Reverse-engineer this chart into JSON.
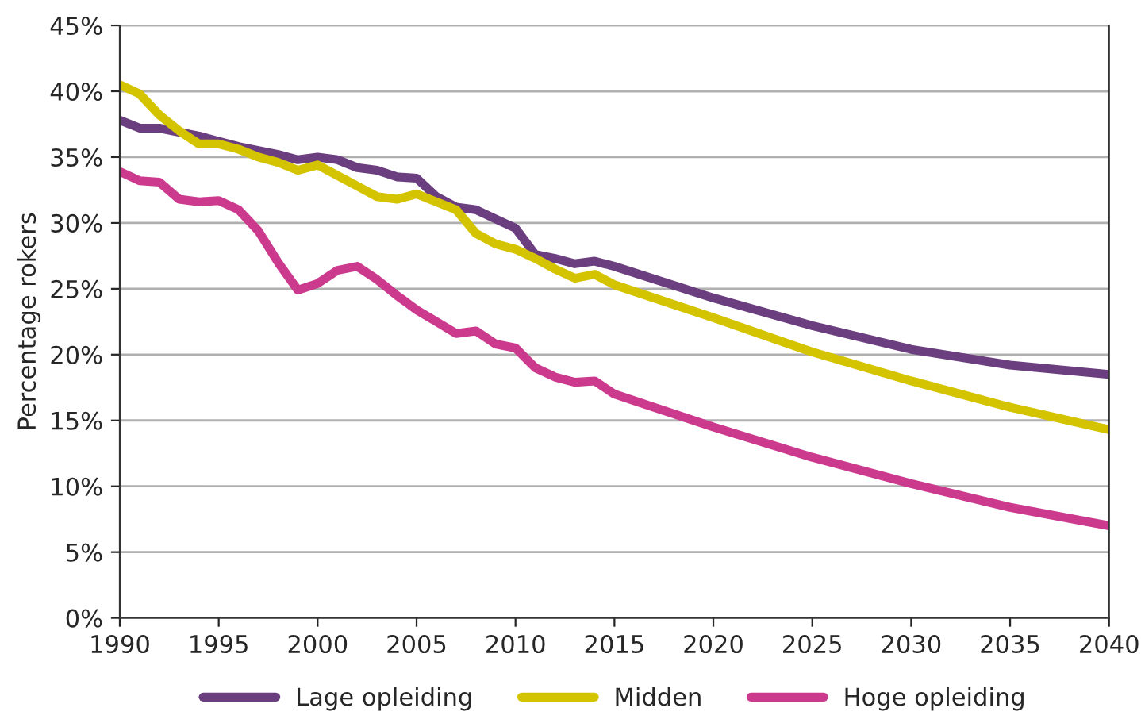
{
  "chart_data": {
    "type": "line",
    "ylabel": "Percentage rokers",
    "x": [
      1990,
      1991,
      1992,
      1993,
      1994,
      1995,
      1996,
      1997,
      1998,
      1999,
      2000,
      2001,
      2002,
      2003,
      2004,
      2005,
      2006,
      2007,
      2008,
      2009,
      2010,
      2011,
      2012,
      2013,
      2014,
      2015,
      2020,
      2025,
      2030,
      2035,
      2040
    ],
    "series": [
      {
        "name": "Lage opleiding",
        "color": "#6b3f7f",
        "values": [
          37.8,
          37.2,
          37.2,
          36.9,
          36.6,
          36.2,
          35.8,
          35.5,
          35.2,
          34.8,
          35.0,
          34.8,
          34.2,
          34.0,
          33.5,
          33.4,
          32.0,
          31.2,
          31.0,
          30.3,
          29.6,
          27.6,
          27.3,
          26.9,
          27.1,
          26.7,
          24.3,
          22.2,
          20.4,
          19.2,
          18.5
        ]
      },
      {
        "name": "Midden",
        "color": "#d4c400",
        "values": [
          40.5,
          39.8,
          38.2,
          37.0,
          36.0,
          36.0,
          35.6,
          35.0,
          34.6,
          34.0,
          34.4,
          33.6,
          32.8,
          32.0,
          31.8,
          32.2,
          31.6,
          31.0,
          29.2,
          28.4,
          28.0,
          27.3,
          26.5,
          25.8,
          26.1,
          25.3,
          22.8,
          20.2,
          18.0,
          16.0,
          14.3
        ]
      },
      {
        "name": "Hoge opleiding",
        "color": "#cc3a8e",
        "values": [
          33.9,
          33.2,
          33.1,
          31.8,
          31.6,
          31.7,
          31.0,
          29.4,
          27.0,
          24.9,
          25.4,
          26.4,
          26.7,
          25.7,
          24.5,
          23.4,
          22.5,
          21.6,
          21.8,
          20.8,
          20.5,
          19.0,
          18.3,
          17.9,
          18.0,
          17.0,
          14.5,
          12.2,
          10.2,
          8.4,
          7.0
        ]
      }
    ],
    "xlim": [
      1990,
      2040
    ],
    "xticks": [
      1990,
      1995,
      2000,
      2005,
      2010,
      2015,
      2020,
      2025,
      2030,
      2035,
      2040
    ],
    "ylim": [
      0,
      45
    ],
    "yticks": [
      {
        "value": 0,
        "label": "0%"
      },
      {
        "value": 5,
        "label": "5%"
      },
      {
        "value": 10,
        "label": "10%"
      },
      {
        "value": 15,
        "label": "15%"
      },
      {
        "value": 20,
        "label": "20%"
      },
      {
        "value": 25,
        "label": "25%"
      },
      {
        "value": 30,
        "label": "30%"
      },
      {
        "value": 35,
        "label": "35%"
      },
      {
        "value": 40,
        "label": "40%"
      },
      {
        "value": 45,
        "label": "45%"
      }
    ],
    "grid": "y",
    "legend": "bottom",
    "line_style": "solid"
  }
}
